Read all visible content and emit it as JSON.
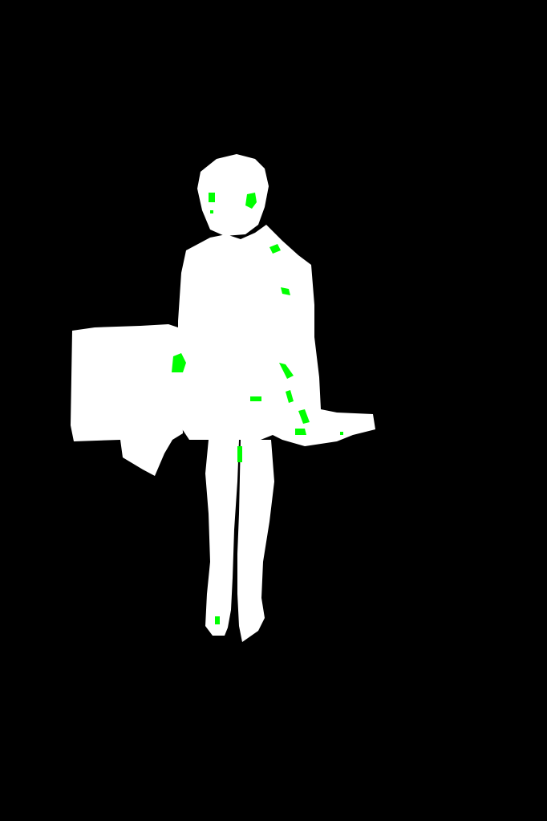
{
  "image": {
    "kind": "segmentation-mask",
    "colors": {
      "background": "#000000",
      "foreground": "#ffffff",
      "highlight": "#00ff00"
    }
  }
}
